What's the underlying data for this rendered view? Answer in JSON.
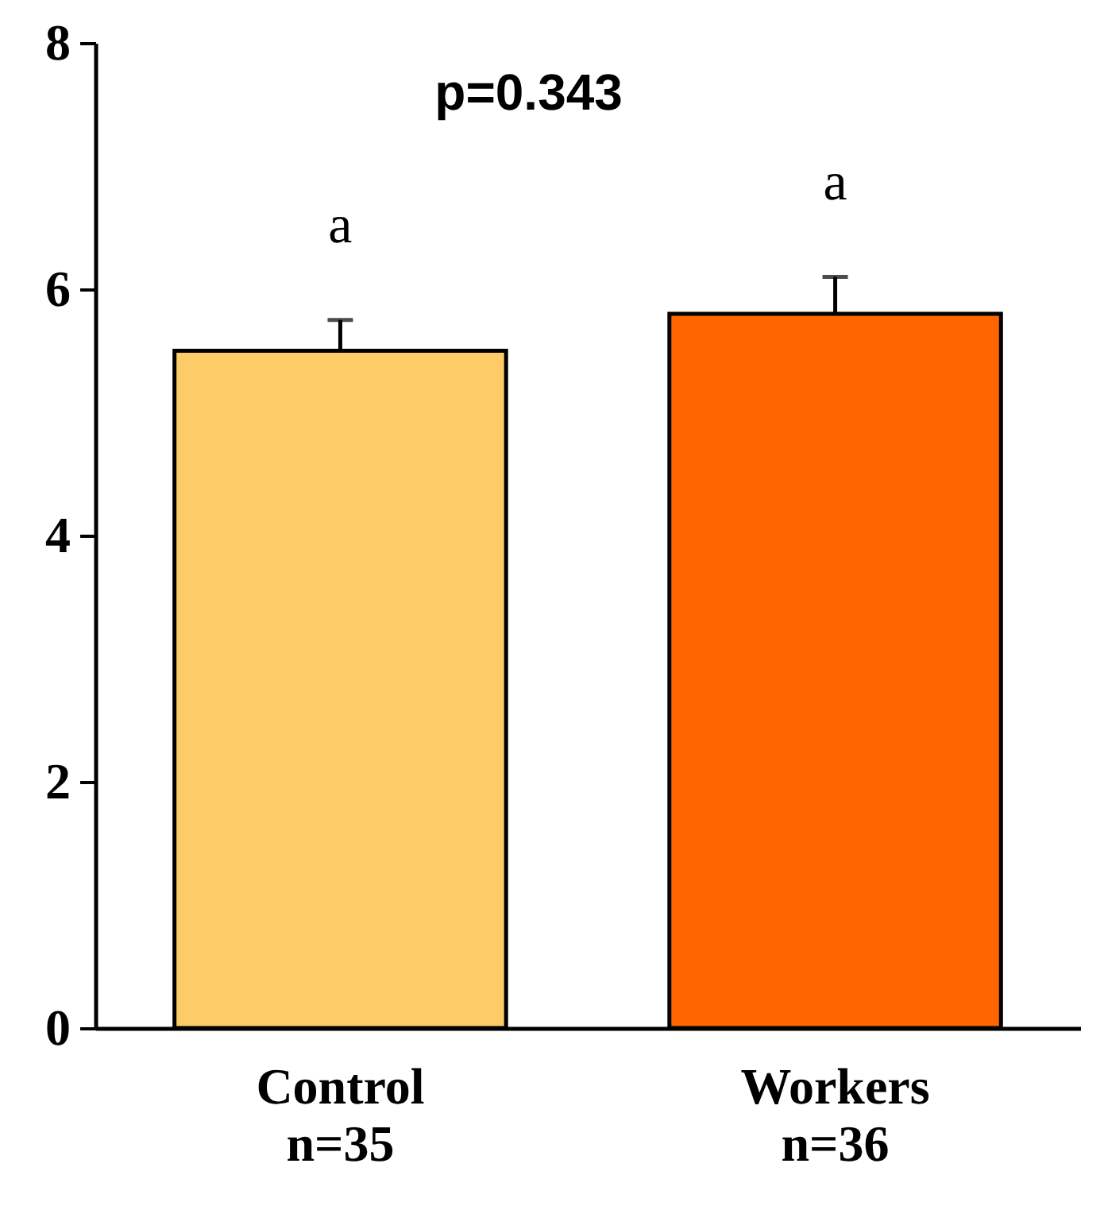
{
  "chart_data": {
    "type": "bar",
    "categories": [
      "Control\nn=35",
      "Workers\nn=36"
    ],
    "values": [
      5.5,
      5.8
    ],
    "colors": [
      "#fecc66",
      "#ff6600"
    ],
    "errors": [
      [
        5.5,
        5.75
      ],
      [
        5.8,
        6.1
      ]
    ],
    "ylim": [
      0,
      8
    ],
    "yticks": [
      0,
      2,
      4,
      6,
      8
    ],
    "grid": false,
    "legend": false,
    "annotations": [
      "p=0.343",
      "a",
      "a"
    ]
  }
}
